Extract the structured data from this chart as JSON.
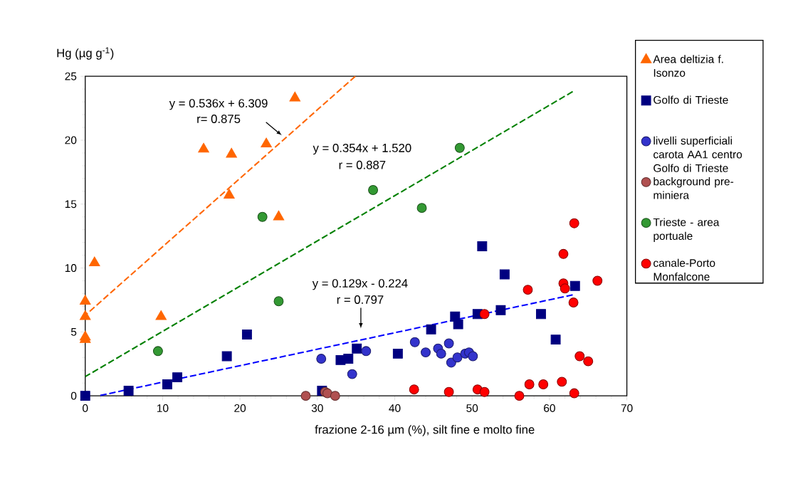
{
  "chart_data": {
    "type": "scatter",
    "xlabel": "frazione 2-16 µm (%), silt fine e molto fine",
    "ylabel": "Hg (µg g$^{-1}$)",
    "xlim": [
      0,
      70
    ],
    "ylim": [
      0,
      25
    ],
    "xticks": [
      0,
      10,
      20,
      30,
      40,
      50,
      60,
      70
    ],
    "yticks": [
      0,
      5,
      10,
      15,
      20,
      25
    ],
    "grid": false,
    "legend": "right",
    "series": [
      {
        "name": "Area deltizia f. Isonzo",
        "color": "#ff6600",
        "marker": "triangle",
        "x": [
          0,
          0,
          0,
          0,
          1.2,
          9.8,
          15.3,
          18.9,
          18.6,
          23.4,
          25.0,
          27.1
        ],
        "values": [
          7.4,
          6.2,
          4.6,
          4.4,
          10.4,
          6.2,
          19.3,
          18.9,
          15.7,
          19.7,
          14.0,
          23.3
        ]
      },
      {
        "name": "Golfo di Trieste",
        "color": "#000080",
        "marker": "square",
        "x": [
          0,
          5.6,
          10.6,
          11.9,
          18.3,
          20.9,
          30.6,
          33.0,
          34.0,
          35.1,
          40.4,
          44.7,
          47.8,
          48.2,
          50.7,
          51.3,
          53.7,
          54.2,
          58.9,
          60.8,
          63.3
        ],
        "values": [
          0,
          0.4,
          0.9,
          1.45,
          3.1,
          4.8,
          0.4,
          2.8,
          2.9,
          3.7,
          3.3,
          5.2,
          6.2,
          5.6,
          6.4,
          11.7,
          6.7,
          9.5,
          6.4,
          4.4,
          8.6
        ]
      },
      {
        "name": "livelli superficiali carota AA1 centro Golfo di Trieste",
        "color": "#3333cc",
        "marker": "circle",
        "x": [
          30.5,
          36.3,
          34.5,
          42.6,
          44.0,
          45.6,
          46.0,
          47.0,
          47.3,
          48.1,
          49.1,
          49.6,
          50.1
        ],
        "values": [
          2.9,
          3.5,
          1.7,
          4.2,
          3.4,
          3.7,
          3.3,
          4.1,
          2.6,
          3.0,
          3.3,
          3.4,
          3.1
        ]
      },
      {
        "name": "background pre-miniera",
        "color": "#b05050",
        "marker": "circle",
        "x": [
          28.5,
          31.0,
          31.3,
          32.3
        ],
        "values": [
          0.0,
          0.3,
          0.2,
          0.0
        ]
      },
      {
        "name": "Trieste - area portuale",
        "color": "#339933",
        "marker": "circle",
        "x": [
          9.4,
          22.9,
          25.0,
          37.2,
          43.5,
          48.4
        ],
        "values": [
          3.5,
          14.0,
          7.4,
          16.1,
          14.7,
          19.4
        ]
      },
      {
        "name": "canale-Porto Monfalcone",
        "color": "#ff0000",
        "marker": "circle",
        "x": [
          42.5,
          47.0,
          50.7,
          51.6,
          51.6,
          57.2,
          61.8,
          61.8,
          62.0,
          63.2,
          63.1,
          66.2,
          63.9,
          65.0,
          57.4,
          59.2,
          61.6,
          63.2,
          56.1
        ],
        "values": [
          0.5,
          0.3,
          0.5,
          0.3,
          6.4,
          8.3,
          11.1,
          8.8,
          8.4,
          13.5,
          7.3,
          9.0,
          3.1,
          2.7,
          0.9,
          0.9,
          1.1,
          0.2,
          0.0
        ]
      },
      {
        "type": "line",
        "color": "#ff6600",
        "line_style": "dashed",
        "x": [
          0,
          34.9
        ],
        "values": [
          6.3,
          25.0
        ]
      },
      {
        "type": "line",
        "color": "#008000",
        "line_style": "dashed",
        "x": [
          0,
          63
        ],
        "values": [
          1.5,
          23.8
        ]
      },
      {
        "type": "line",
        "color": "#0000ff",
        "line_style": "dashed",
        "x": [
          1.7,
          63
        ],
        "values": [
          0,
          7.9
        ]
      }
    ],
    "annotations": [
      "y = 0.536x + 6.309",
      "r= 0.875",
      "y = 0.354x + 1.520",
      "r = 0.887",
      "y = 0.129x - 0.224",
      "r = 0.797"
    ]
  }
}
